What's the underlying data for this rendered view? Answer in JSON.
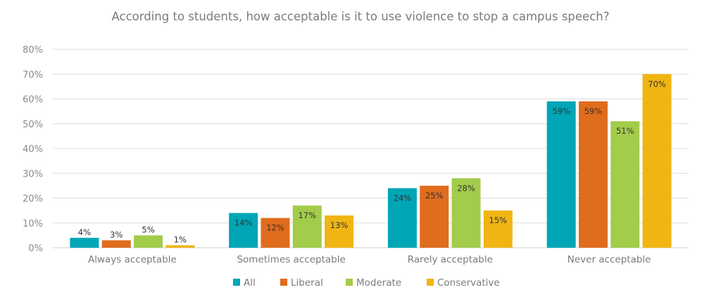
{
  "chart_data": {
    "type": "bar",
    "title": "According to students, how acceptable is it to use violence to stop a campus speech?",
    "xlabel": "",
    "ylabel": "",
    "categories": [
      "Always acceptable",
      "Sometimes acceptable",
      "Rarely acceptable",
      "Never acceptable"
    ],
    "series": [
      {
        "name": "All",
        "color": "#00A6B6",
        "values": [
          4,
          14,
          24,
          59
        ]
      },
      {
        "name": "Liberal",
        "color": "#E06C1E",
        "values": [
          3,
          12,
          25,
          59
        ]
      },
      {
        "name": "Moderate",
        "color": "#A3CC4B",
        "values": [
          5,
          17,
          28,
          51
        ]
      },
      {
        "name": "Conservative",
        "color": "#F0B513",
        "values": [
          1,
          13,
          15,
          70
        ]
      }
    ],
    "ylim": [
      0,
      80
    ],
    "yticks": [
      "0%",
      "10%",
      "20%",
      "30%",
      "40%",
      "50%",
      "60%",
      "70%",
      "80%"
    ],
    "data_labels": [
      [
        "4%",
        "14%",
        "24%",
        "59%"
      ],
      [
        "3%",
        "12%",
        "25%",
        "59%"
      ],
      [
        "5%",
        "17%",
        "28%",
        "51%"
      ],
      [
        "1%",
        "13%",
        "15%",
        "70%"
      ]
    ],
    "grid": true,
    "legend": "bottom"
  }
}
